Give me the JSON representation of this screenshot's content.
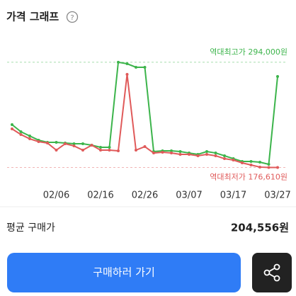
{
  "header": {
    "title": "가격 그래프"
  },
  "chart_data": {
    "type": "line",
    "categories": [
      null,
      null,
      null,
      null,
      null,
      "02/06",
      null,
      null,
      null,
      null,
      "02/16",
      null,
      null,
      null,
      null,
      "02/26",
      null,
      null,
      null,
      null,
      "03/07",
      null,
      null,
      null,
      null,
      "03/17",
      null,
      null,
      null,
      null,
      "03/27"
    ],
    "series": [
      {
        "color": "#3cb44b",
        "values": [
          224400,
          216500,
          211800,
          207100,
          204700,
          204700,
          203900,
          203100,
          203100,
          201500,
          199200,
          199200,
          294000,
          292300,
          288400,
          288400,
          194400,
          195200,
          195200,
          194400,
          192800,
          191300,
          194400,
          192800,
          189700,
          186500,
          183400,
          183400,
          182600,
          180200,
          278100
        ]
      },
      {
        "color": "#e05a5a",
        "values": [
          219700,
          213400,
          208600,
          205500,
          203900,
          196000,
          203100,
          200700,
          196000,
          201500,
          196000,
          196000,
          195200,
          280500,
          196000,
          199900,
          192800,
          193600,
          192800,
          191300,
          191300,
          189700,
          191300,
          189700,
          186500,
          184900,
          181800,
          179400,
          177100,
          176610,
          176610
        ]
      }
    ],
    "ylim": [
      166000,
      316000
    ],
    "annotations": [
      {
        "value": 294000,
        "label": "역대최고가 294,000원",
        "color": "#3cb44b"
      },
      {
        "value": 176610,
        "label": "역대최저가 176,610원",
        "color": "#e05a5a"
      }
    ]
  },
  "summary": {
    "label": "평균 구매가",
    "value": "204,556원"
  },
  "buttons": {
    "buy": "구매하러 가기"
  }
}
